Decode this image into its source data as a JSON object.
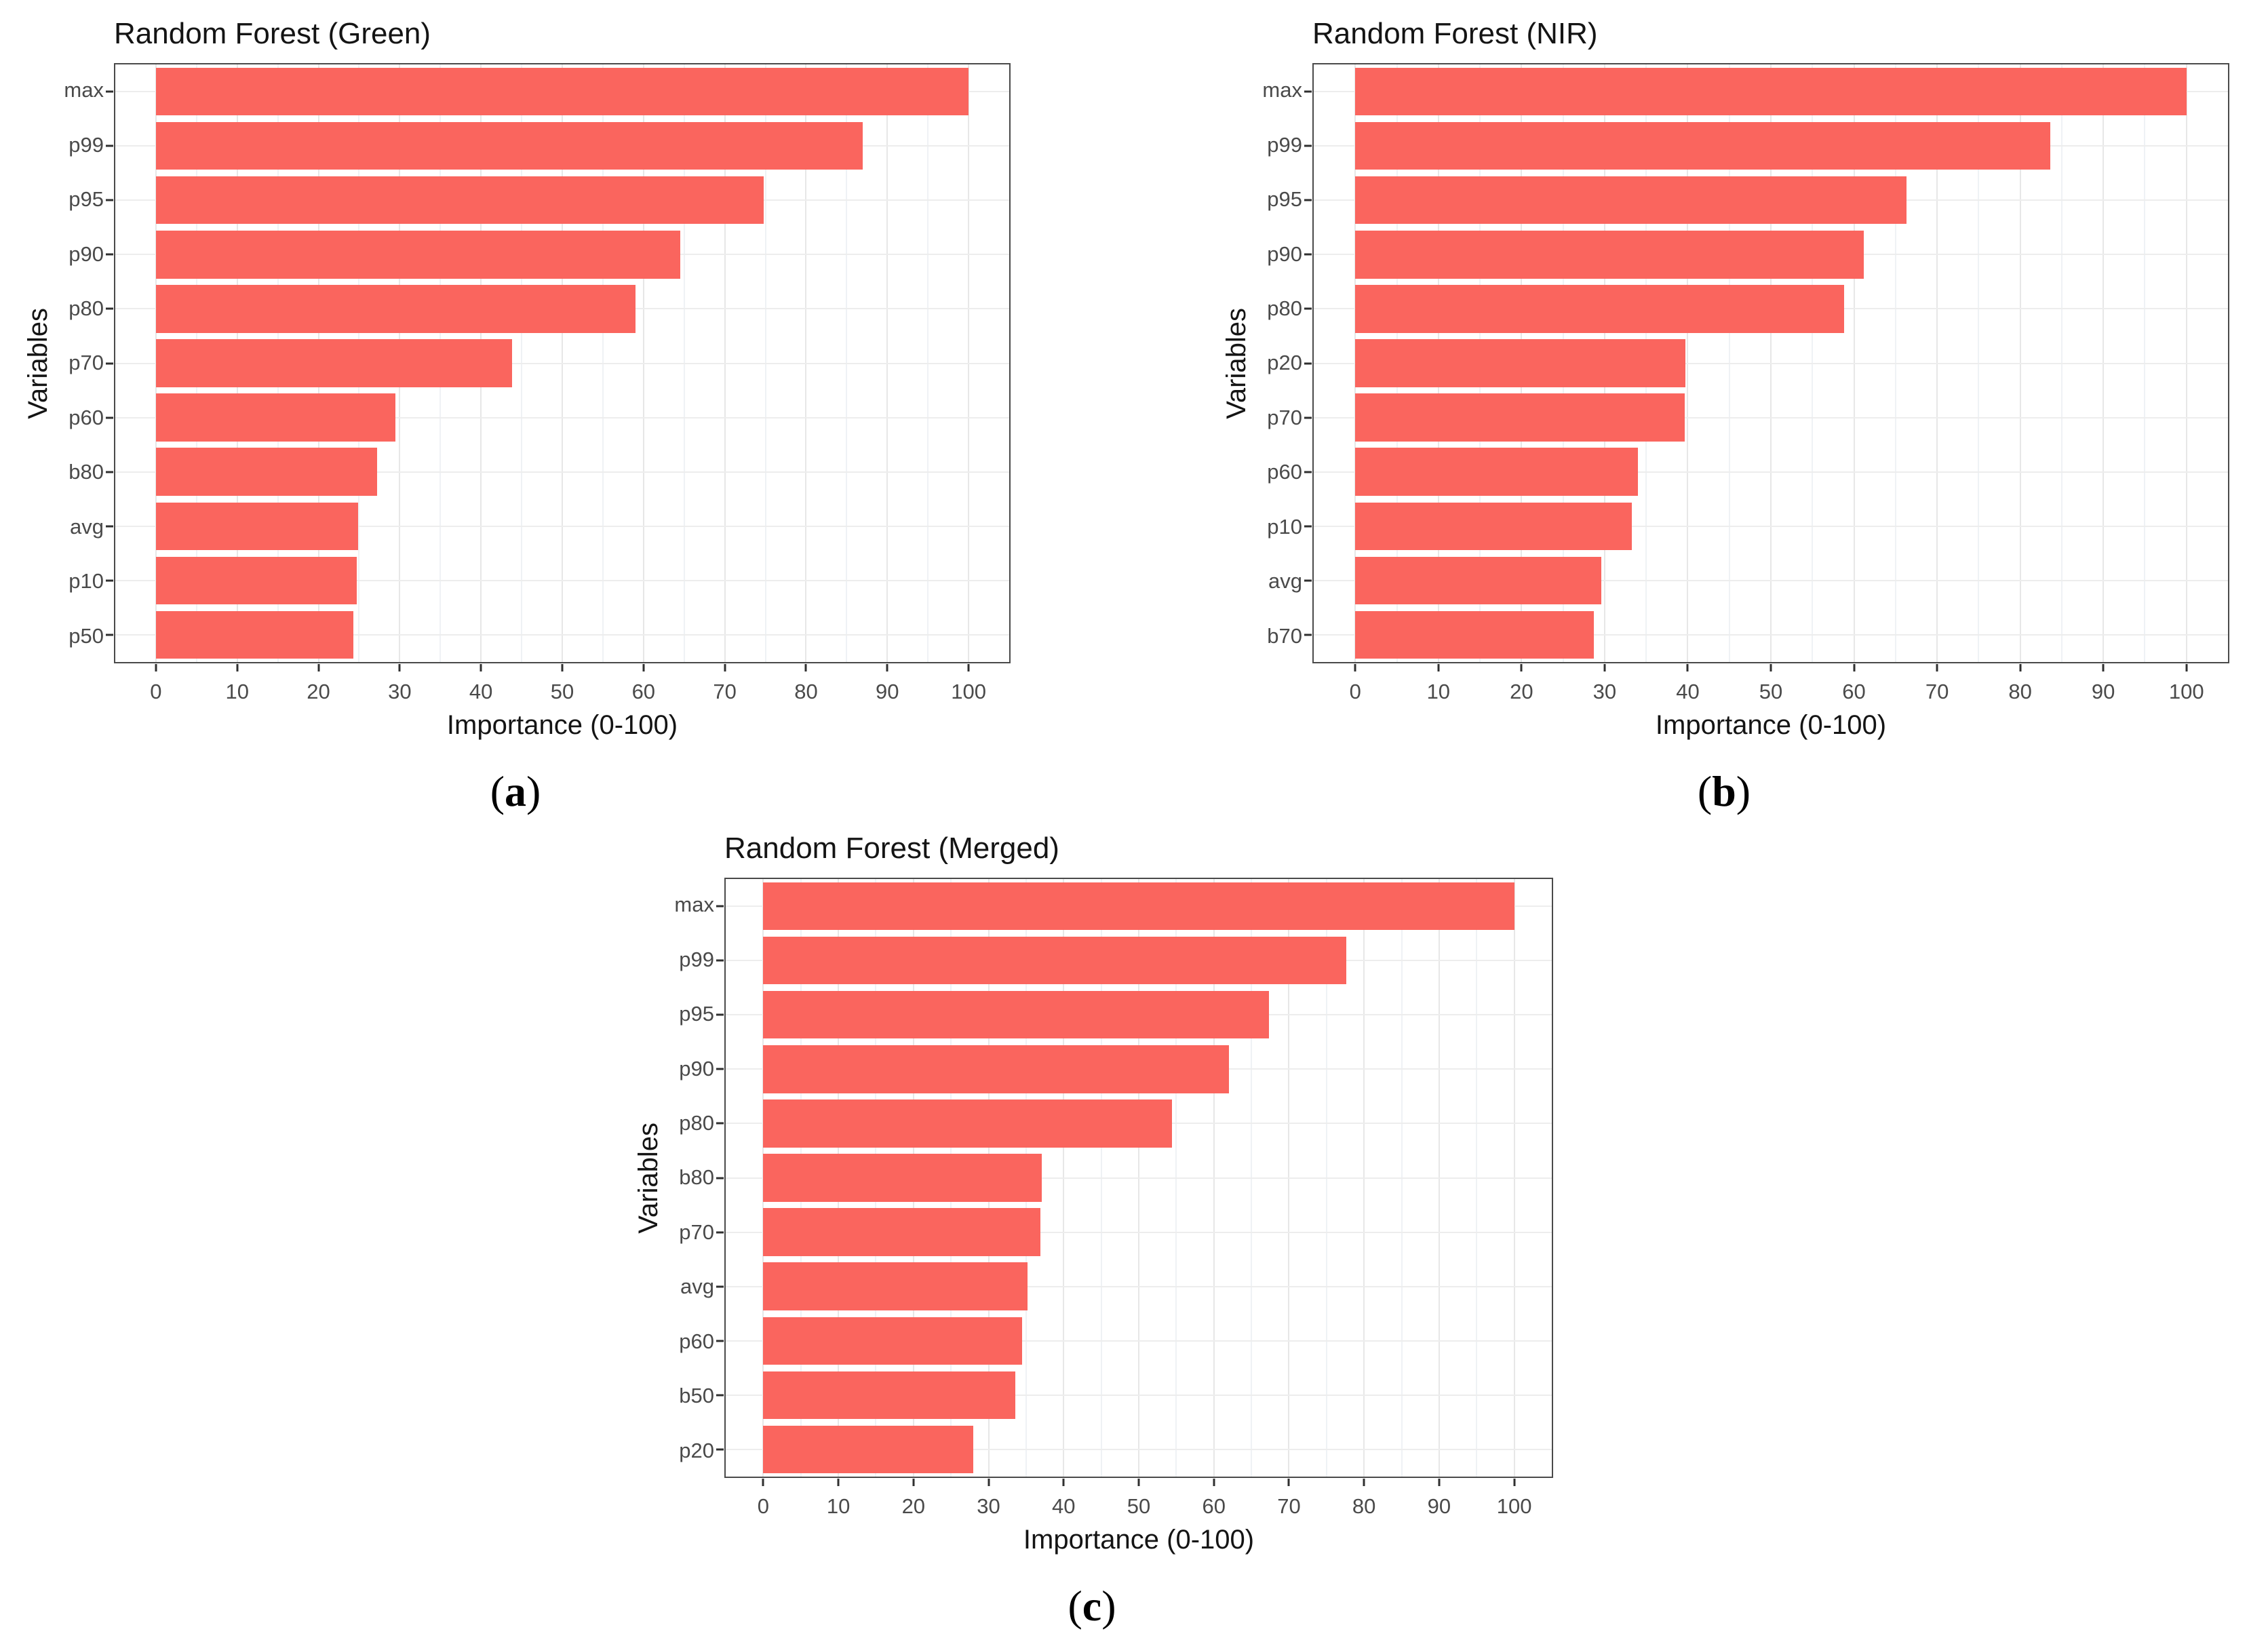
{
  "styles": {
    "bar_color": "#FA655E",
    "panel_border_color": "#4a4a4a",
    "grid_major_color": "#e7e7e7",
    "grid_minor_color": "#eff2f5",
    "grid_horizontal_color": "#ededed",
    "tick_mark_color": "#2f2f2f",
    "axis_text_color": "#4a4a4a",
    "title_text_color": "#141414",
    "background_color": "#ffffff"
  },
  "chart_data": [
    {
      "type": "bar",
      "orientation": "horizontal",
      "title": "Random Forest (Green)",
      "xlabel": "Importance (0-100)",
      "ylabel": "Variables",
      "panel_label": "(a)",
      "xlim": [
        0,
        100
      ],
      "x_ticks": [
        0,
        10,
        20,
        30,
        40,
        50,
        60,
        70,
        80,
        90,
        100
      ],
      "x_tick_labels": [
        "0",
        "10",
        "20",
        "30",
        "40",
        "50",
        "60",
        "70",
        "80",
        "90",
        "100"
      ],
      "grid": true,
      "legend_position": "none",
      "categories": [
        "max",
        "p99",
        "p95",
        "p90",
        "p80",
        "p70",
        "p60",
        "b80",
        "avg",
        "p10",
        "p50"
      ],
      "values": [
        100,
        87,
        74.8,
        64.5,
        59,
        43.8,
        29.5,
        27.2,
        24.9,
        24.7,
        24.3
      ]
    },
    {
      "type": "bar",
      "orientation": "horizontal",
      "title": "Random Forest (NIR)",
      "xlabel": "Importance (0-100)",
      "ylabel": "Variables",
      "panel_label": "(b)",
      "xlim": [
        0,
        100
      ],
      "x_ticks": [
        0,
        10,
        20,
        30,
        40,
        50,
        60,
        70,
        80,
        90,
        100
      ],
      "x_tick_labels": [
        "0",
        "10",
        "20",
        "30",
        "40",
        "50",
        "60",
        "70",
        "80",
        "90",
        "100"
      ],
      "grid": true,
      "legend_position": "none",
      "categories": [
        "max",
        "p99",
        "p95",
        "p90",
        "p80",
        "p20",
        "p70",
        "p60",
        "p10",
        "avg",
        "b70"
      ],
      "values": [
        100,
        83.6,
        66.3,
        61.2,
        58.8,
        39.7,
        39.6,
        34,
        33.3,
        29.6,
        28.7
      ]
    },
    {
      "type": "bar",
      "orientation": "horizontal",
      "title": "Random Forest (Merged)",
      "xlabel": "Importance (0-100)",
      "ylabel": "Variables",
      "panel_label": "(c)",
      "xlim": [
        0,
        100
      ],
      "x_ticks": [
        0,
        10,
        20,
        30,
        40,
        50,
        60,
        70,
        80,
        90,
        100
      ],
      "x_tick_labels": [
        "0",
        "10",
        "20",
        "30",
        "40",
        "50",
        "60",
        "70",
        "80",
        "90",
        "100"
      ],
      "grid": true,
      "legend_position": "none",
      "categories": [
        "max",
        "p99",
        "p95",
        "p90",
        "p80",
        "b80",
        "p70",
        "avg",
        "p60",
        "b50",
        "p20"
      ],
      "values": [
        100,
        77.6,
        67.3,
        62,
        54.4,
        37.1,
        36.9,
        35.2,
        34.5,
        33.6,
        28
      ]
    }
  ]
}
